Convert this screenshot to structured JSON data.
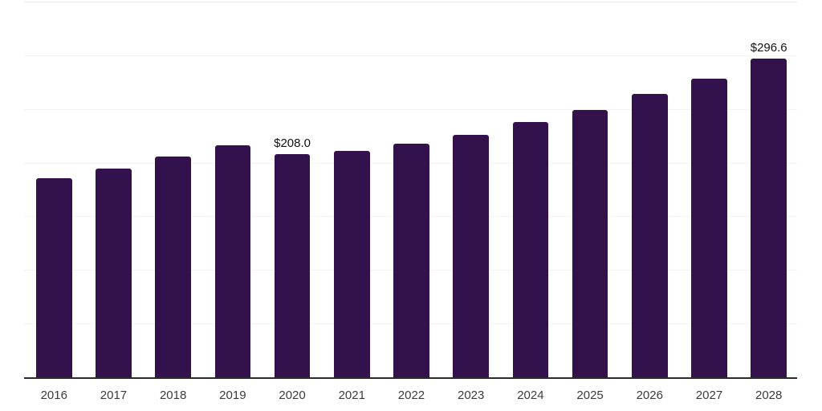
{
  "chart_data": {
    "type": "bar",
    "title": "",
    "xlabel": "",
    "ylabel": "",
    "categories": [
      "2016",
      "2017",
      "2018",
      "2019",
      "2020",
      "2021",
      "2022",
      "2023",
      "2024",
      "2025",
      "2026",
      "2027",
      "2028"
    ],
    "values": [
      185.3,
      194.5,
      206.0,
      216.4,
      208.0,
      211.2,
      217.9,
      226.0,
      237.5,
      249.4,
      263.7,
      278.1,
      296.6
    ],
    "point_labels": [
      "",
      "",
      "",
      "",
      "$208.0",
      "",
      "",
      "",
      "",
      "",
      "",
      "",
      "$296.6"
    ],
    "ylim": [
      0,
      350
    ],
    "gridline_step": 50,
    "grid": "horizontal-only",
    "legend": "none",
    "colors": {
      "bar": "#33114d",
      "axis_line": "#2b2b2b",
      "gridline": "#f4f4f4",
      "top_boundary_line": "#eaeaea",
      "value_label_text": "#121212",
      "tick_label_text": "#3b3b3b",
      "background": "#ffffff"
    }
  }
}
